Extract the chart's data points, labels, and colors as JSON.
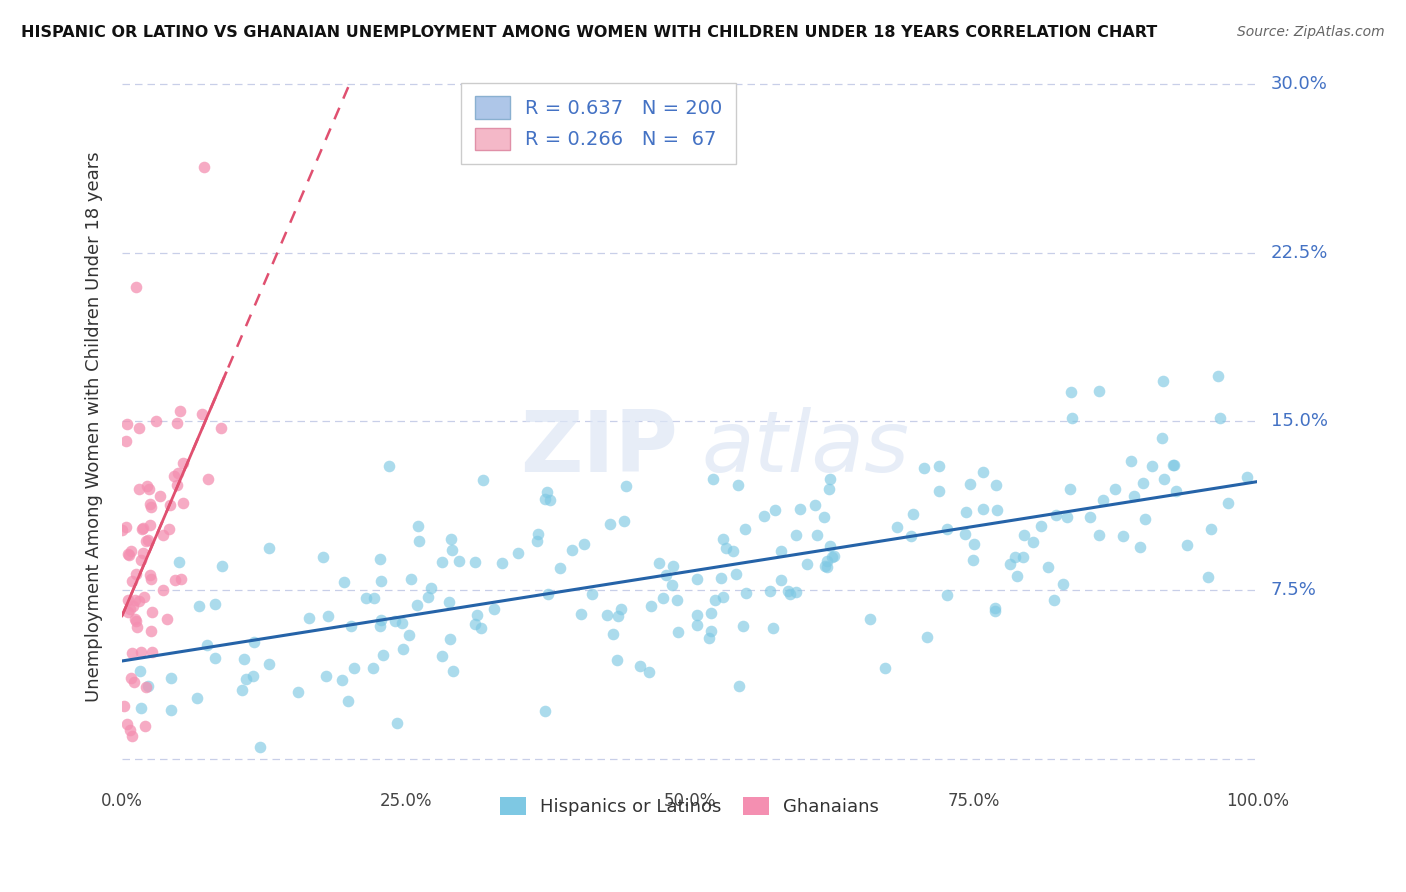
{
  "title": "HISPANIC OR LATINO VS GHANAIAN UNEMPLOYMENT AMONG WOMEN WITH CHILDREN UNDER 18 YEARS CORRELATION CHART",
  "source": "Source: ZipAtlas.com",
  "ylabel": "Unemployment Among Women with Children Under 18 years",
  "xlim": [
    0,
    1.0
  ],
  "ylim": [
    -0.01,
    0.305
  ],
  "yticks": [
    0.0,
    0.075,
    0.15,
    0.225,
    0.3
  ],
  "ytick_labels": [
    "",
    "7.5%",
    "15.0%",
    "22.5%",
    "30.0%"
  ],
  "xticks": [
    0,
    0.25,
    0.5,
    0.75,
    1.0
  ],
  "xtick_labels": [
    "0.0%",
    "25.0%",
    "50.0%",
    "75.0%",
    "100.0%"
  ],
  "hispanic_dot_color": "#7ec8e3",
  "ghanaian_dot_color": "#f48fb1",
  "hispanic_R": 0.637,
  "hispanic_N": 200,
  "ghanaian_R": 0.266,
  "ghanaian_N": 67,
  "trend_color_hispanic": "#2563a8",
  "trend_color_ghanaian": "#e05070",
  "watermark_zip": "ZIP",
  "watermark_atlas": "atlas",
  "background_color": "#ffffff",
  "grid_color": "#c8cfe8",
  "right_label_color": "#4472c4",
  "legend_text_color": "#4472c4",
  "hispanic_legend_facecolor": "#aec6e8",
  "ghanaian_legend_facecolor": "#f4b8c8",
  "seed": 7
}
